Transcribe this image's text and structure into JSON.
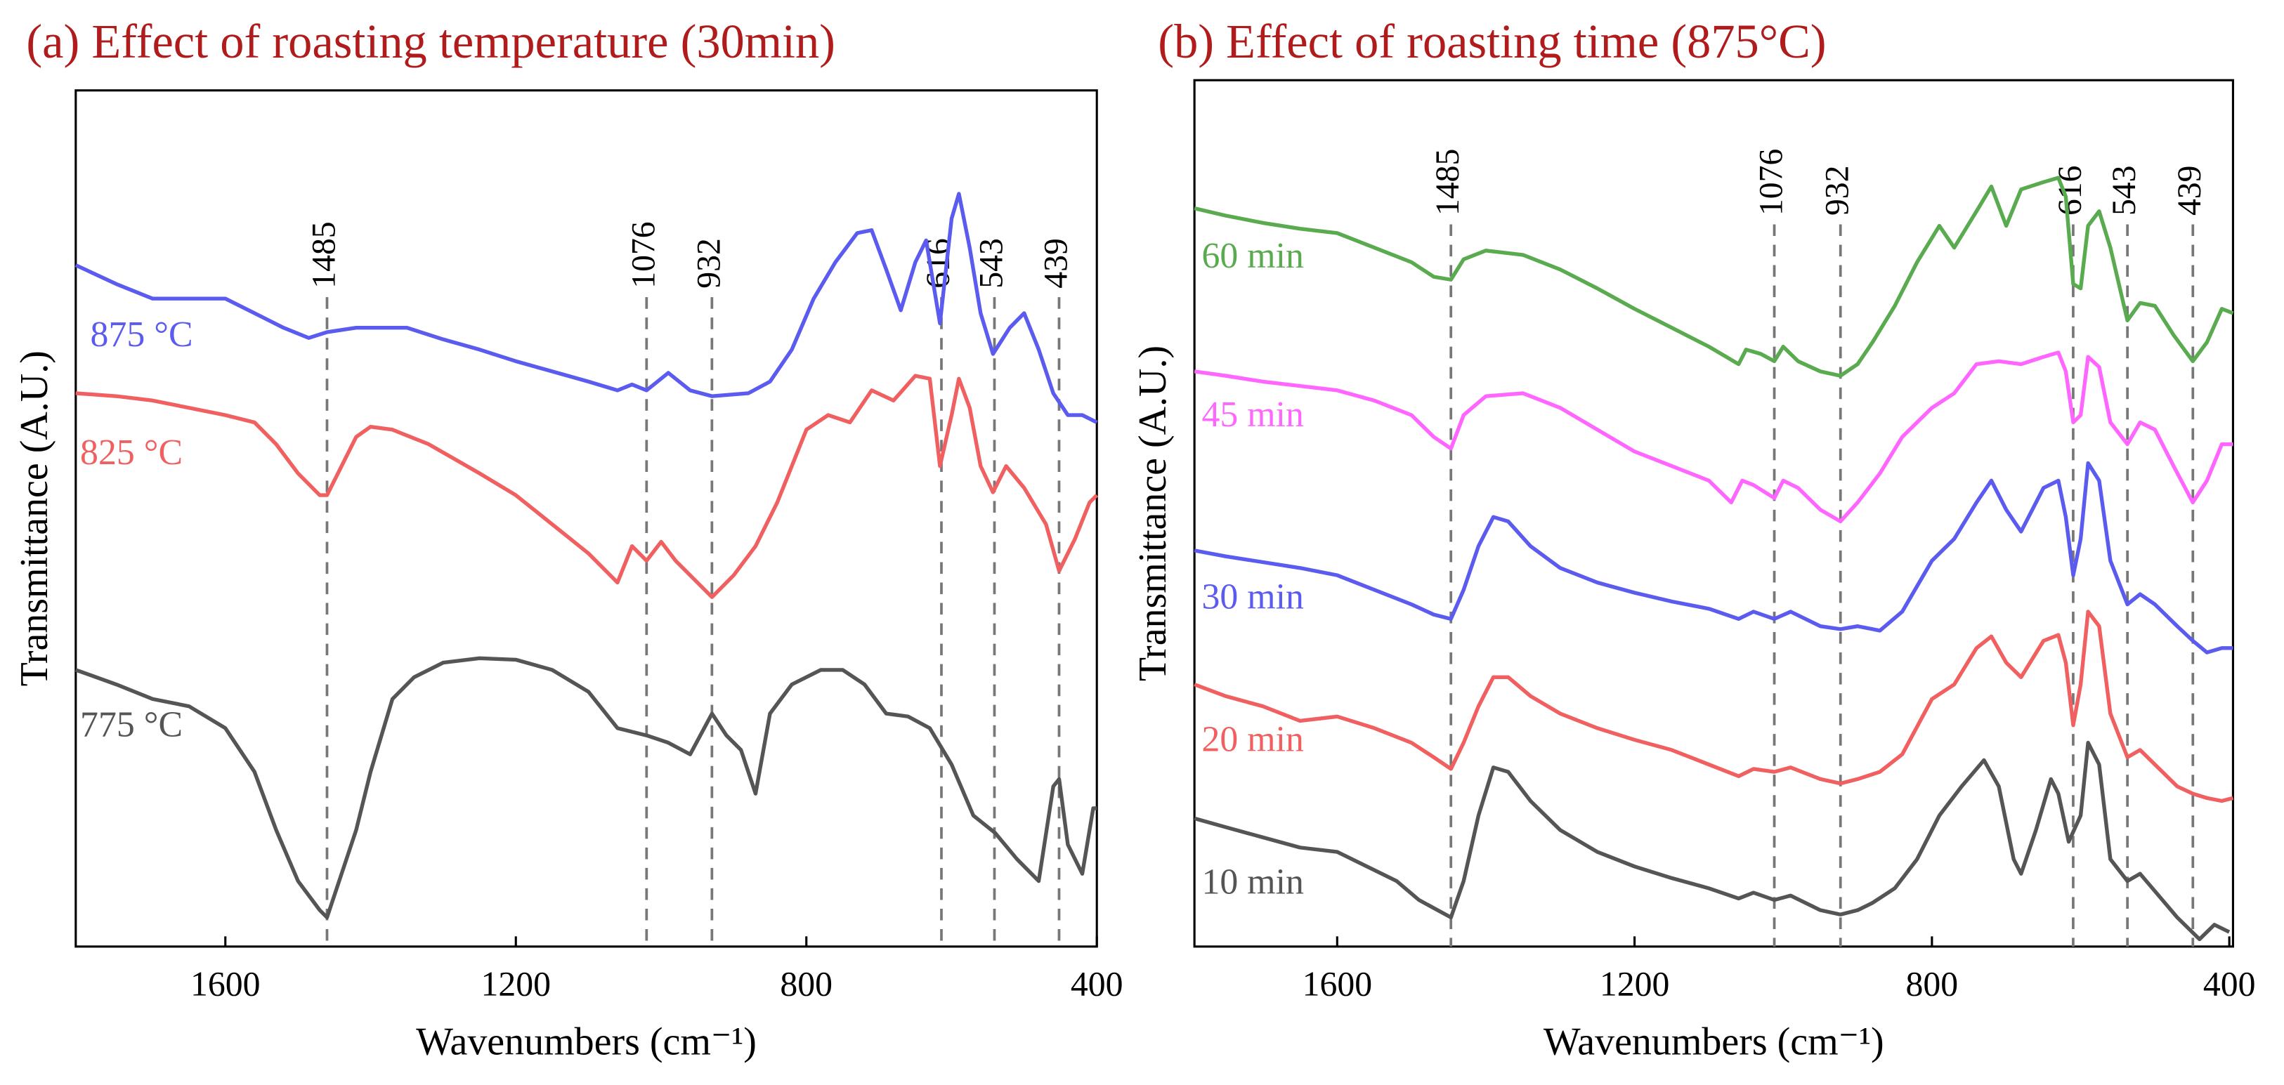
{
  "chart_data": [
    {
      "type": "line",
      "title": "(a) Effect of roasting temperature (30min)",
      "xlabel": "Wavenumbers (cm⁻¹)",
      "ylabel": "Transmittance (A.U.)",
      "xlim": [
        1806,
        400
      ],
      "xticks": [
        1600,
        1200,
        800,
        400
      ],
      "ylim": [
        0,
        588
      ],
      "annotations": [
        {
          "x": 1460,
          "label": "1485"
        },
        {
          "x": 1020,
          "label": "1076"
        },
        {
          "x": 930,
          "label": "932"
        },
        {
          "x": 614,
          "label": "616"
        },
        {
          "x": 541,
          "label": "543"
        },
        {
          "x": 452,
          "label": "439"
        }
      ],
      "series": [
        {
          "name": "875 °C",
          "color": "#5b5bf0",
          "x": [
            1806,
            1750,
            1700,
            1650,
            1600,
            1560,
            1520,
            1485,
            1460,
            1420,
            1350,
            1300,
            1250,
            1200,
            1150,
            1100,
            1060,
            1040,
            1020,
            990,
            960,
            930,
            880,
            850,
            820,
            790,
            760,
            730,
            710,
            690,
            670,
            650,
            635,
            616,
            600,
            590,
            575,
            560,
            543,
            520,
            500,
            480,
            460,
            440,
            420,
            400
          ],
          "values": [
            468,
            455,
            445,
            445,
            445,
            435,
            425,
            418,
            422,
            425,
            425,
            417,
            410,
            402,
            395,
            388,
            382,
            386,
            382,
            394,
            382,
            378,
            380,
            388,
            410,
            445,
            470,
            490,
            492,
            465,
            437,
            470,
            485,
            428,
            500,
            517,
            480,
            435,
            407,
            425,
            435,
            410,
            380,
            365,
            365,
            360
          ]
        },
        {
          "name": "825 °C",
          "color": "#f06060",
          "x": [
            1806,
            1750,
            1700,
            1650,
            1600,
            1560,
            1530,
            1500,
            1470,
            1460,
            1440,
            1420,
            1400,
            1370,
            1320,
            1250,
            1200,
            1150,
            1100,
            1060,
            1040,
            1020,
            1000,
            980,
            950,
            930,
            900,
            870,
            840,
            800,
            770,
            740,
            710,
            680,
            650,
            630,
            616,
            600,
            590,
            575,
            560,
            543,
            525,
            500,
            470,
            452,
            430,
            410,
            400
          ],
          "values": [
            380,
            378,
            375,
            370,
            365,
            360,
            345,
            325,
            310,
            310,
            330,
            350,
            357,
            355,
            345,
            325,
            310,
            290,
            270,
            250,
            275,
            265,
            278,
            265,
            250,
            240,
            255,
            275,
            305,
            355,
            365,
            360,
            382,
            375,
            392,
            390,
            330,
            365,
            390,
            370,
            330,
            312,
            330,
            315,
            290,
            258,
            280,
            305,
            310
          ]
        },
        {
          "name": "775 °C",
          "color": "#555555",
          "x": [
            1806,
            1750,
            1700,
            1650,
            1600,
            1560,
            1530,
            1500,
            1470,
            1460,
            1440,
            1420,
            1400,
            1370,
            1340,
            1300,
            1250,
            1200,
            1150,
            1100,
            1060,
            1020,
            990,
            960,
            930,
            910,
            890,
            870,
            850,
            820,
            780,
            750,
            720,
            690,
            660,
            630,
            600,
            570,
            540,
            510,
            480,
            460,
            452,
            440,
            420,
            405,
            400
          ],
          "values": [
            190,
            180,
            170,
            165,
            150,
            120,
            80,
            45,
            25,
            20,
            50,
            80,
            120,
            170,
            185,
            195,
            198,
            197,
            190,
            175,
            150,
            145,
            140,
            132,
            160,
            145,
            135,
            105,
            160,
            180,
            190,
            190,
            180,
            160,
            158,
            150,
            125,
            90,
            78,
            60,
            45,
            110,
            115,
            70,
            50,
            95,
            95
          ]
        }
      ]
    },
    {
      "type": "line",
      "title": "(b) Effect of roasting time (875°C)",
      "xlabel": "Wavenumbers (cm⁻¹)",
      "ylabel": "Transmittance (A.U.)",
      "xlim": [
        1792,
        395
      ],
      "xticks": [
        1600,
        1200,
        800,
        400
      ],
      "ylim": [
        0,
        595
      ],
      "annotations": [
        {
          "x": 1447,
          "label": "1485"
        },
        {
          "x": 1012,
          "label": "1076"
        },
        {
          "x": 923,
          "label": "932"
        },
        {
          "x": 610,
          "label": "616"
        },
        {
          "x": 537,
          "label": "543"
        },
        {
          "x": 449,
          "label": "439"
        }
      ],
      "series": [
        {
          "name": "60 min",
          "color": "#5aaa50",
          "x": [
            1792,
            1750,
            1700,
            1650,
            1600,
            1550,
            1500,
            1470,
            1447,
            1430,
            1400,
            1350,
            1300,
            1250,
            1200,
            1150,
            1100,
            1060,
            1050,
            1030,
            1012,
            1000,
            980,
            950,
            923,
            900,
            880,
            850,
            820,
            790,
            770,
            740,
            720,
            700,
            680,
            650,
            630,
            620,
            610,
            600,
            590,
            575,
            560,
            537,
            520,
            500,
            475,
            449,
            430,
            410,
            395
          ],
          "values": [
            507,
            502,
            497,
            493,
            490,
            480,
            470,
            460,
            458,
            472,
            478,
            475,
            465,
            452,
            438,
            425,
            412,
            400,
            410,
            407,
            402,
            412,
            402,
            395,
            392,
            400,
            415,
            440,
            470,
            495,
            480,
            505,
            522,
            495,
            520,
            525,
            528,
            515,
            455,
            452,
            495,
            505,
            480,
            430,
            442,
            440,
            420,
            402,
            415,
            438,
            435
          ]
        },
        {
          "name": "45 min",
          "color": "#ff66ff",
          "x": [
            1792,
            1750,
            1700,
            1650,
            1600,
            1550,
            1500,
            1470,
            1447,
            1430,
            1400,
            1350,
            1300,
            1250,
            1200,
            1150,
            1100,
            1070,
            1055,
            1040,
            1012,
            1000,
            980,
            950,
            923,
            900,
            870,
            840,
            800,
            770,
            740,
            710,
            680,
            650,
            630,
            620,
            610,
            600,
            590,
            575,
            560,
            537,
            520,
            500,
            475,
            449,
            430,
            410,
            395
          ],
          "values": [
            395,
            392,
            388,
            385,
            382,
            375,
            365,
            350,
            342,
            365,
            378,
            380,
            370,
            355,
            340,
            330,
            320,
            305,
            320,
            317,
            308,
            320,
            315,
            300,
            292,
            305,
            325,
            350,
            370,
            380,
            400,
            402,
            400,
            405,
            408,
            395,
            360,
            365,
            405,
            398,
            360,
            345,
            360,
            355,
            330,
            305,
            320,
            345,
            345
          ]
        },
        {
          "name": "30 min",
          "color": "#5b5bf0",
          "x": [
            1792,
            1750,
            1700,
            1650,
            1600,
            1550,
            1500,
            1470,
            1447,
            1430,
            1410,
            1390,
            1370,
            1340,
            1300,
            1250,
            1200,
            1150,
            1100,
            1060,
            1040,
            1012,
            990,
            950,
            923,
            900,
            870,
            840,
            800,
            770,
            740,
            720,
            700,
            680,
            650,
            630,
            620,
            610,
            600,
            590,
            575,
            560,
            537,
            520,
            500,
            470,
            449,
            430,
            410,
            395
          ],
          "values": [
            272,
            268,
            264,
            260,
            255,
            245,
            235,
            228,
            225,
            245,
            275,
            295,
            292,
            275,
            260,
            250,
            243,
            237,
            232,
            225,
            230,
            225,
            230,
            220,
            218,
            220,
            217,
            230,
            265,
            280,
            305,
            320,
            300,
            285,
            315,
            320,
            295,
            255,
            280,
            332,
            320,
            265,
            235,
            242,
            235,
            220,
            210,
            202,
            205,
            205
          ]
        },
        {
          "name": "20 min",
          "color": "#f06060",
          "x": [
            1792,
            1750,
            1700,
            1650,
            1600,
            1550,
            1500,
            1470,
            1447,
            1430,
            1410,
            1390,
            1370,
            1340,
            1300,
            1250,
            1200,
            1150,
            1100,
            1060,
            1040,
            1012,
            990,
            950,
            923,
            900,
            870,
            840,
            800,
            770,
            740,
            720,
            700,
            680,
            650,
            630,
            620,
            610,
            600,
            590,
            575,
            560,
            537,
            520,
            500,
            470,
            449,
            430,
            410,
            395
          ],
          "values": [
            180,
            172,
            165,
            155,
            158,
            150,
            140,
            130,
            122,
            140,
            165,
            185,
            185,
            172,
            160,
            150,
            142,
            135,
            125,
            117,
            122,
            120,
            123,
            115,
            112,
            115,
            120,
            132,
            170,
            180,
            205,
            213,
            195,
            185,
            210,
            214,
            195,
            152,
            180,
            230,
            220,
            160,
            130,
            135,
            125,
            110,
            105,
            102,
            100,
            102
          ]
        },
        {
          "name": "10 min",
          "color": "#555555",
          "x": [
            1792,
            1750,
            1700,
            1650,
            1600,
            1560,
            1520,
            1490,
            1447,
            1430,
            1410,
            1390,
            1370,
            1340,
            1300,
            1250,
            1200,
            1150,
            1100,
            1060,
            1040,
            1012,
            990,
            950,
            923,
            900,
            880,
            850,
            820,
            790,
            760,
            730,
            710,
            690,
            680,
            660,
            640,
            630,
            616,
            600,
            590,
            575,
            560,
            537,
            520,
            500,
            470,
            440,
            420,
            400
          ],
          "values": [
            88,
            82,
            75,
            68,
            65,
            55,
            45,
            32,
            20,
            45,
            90,
            123,
            120,
            100,
            80,
            65,
            55,
            47,
            40,
            33,
            37,
            32,
            35,
            25,
            22,
            25,
            30,
            40,
            60,
            90,
            110,
            128,
            110,
            60,
            50,
            80,
            115,
            105,
            72,
            90,
            140,
            125,
            60,
            45,
            50,
            38,
            20,
            5,
            15,
            10
          ]
        }
      ]
    }
  ]
}
